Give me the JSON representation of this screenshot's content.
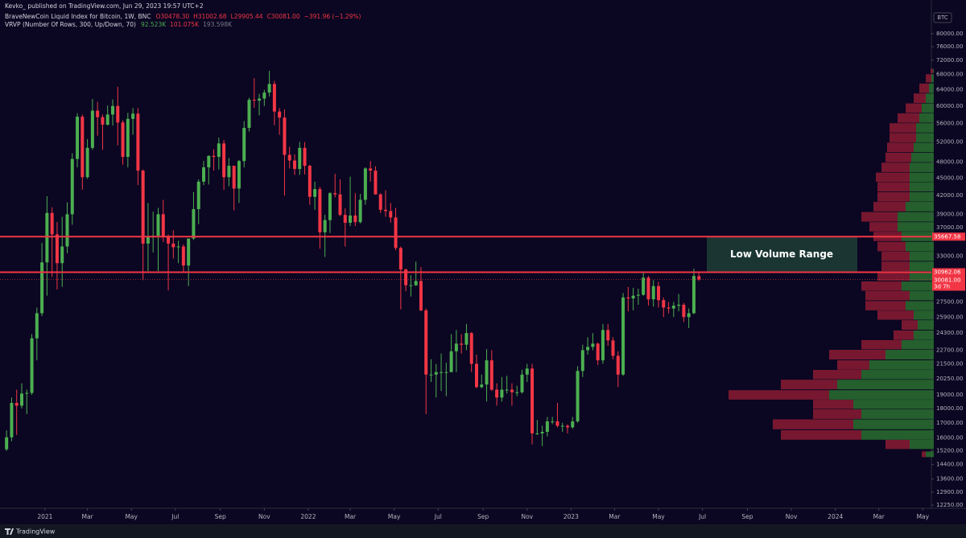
{
  "header": {
    "publisher": "Kevko_ published on TradingView.com, Jun 29, 2023 19:57 UTC+2",
    "symbol": "BraveNewCoin Liquid Index for Bitcoin, 1W, BNC",
    "ohlc": [
      "O30478.30",
      "H31002.68",
      "L29905.44",
      "C30081.00",
      "−391.96 (−1.29%)"
    ],
    "indicator": "VRVP (Number Of Rows, 300, Up/Down, 70)",
    "indicator_values": [
      "92.523K",
      "101.075K",
      "193.598K"
    ]
  },
  "symbol_badge": "BTC",
  "footer": "TradingView",
  "chart_data": {
    "type": "candlestick",
    "log_scale": true,
    "colors": {
      "up": "#4caf50",
      "down": "#f23645",
      "level": "#f23645"
    },
    "xlim": [
      -1.3,
      183
    ],
    "ylim": [
      12100,
      91500
    ],
    "xticks": [
      {
        "value": 7.6,
        "label": "2021"
      },
      {
        "value": 16,
        "label": "Mar"
      },
      {
        "value": 24.7,
        "label": "May"
      },
      {
        "value": 33.4,
        "label": "Jul"
      },
      {
        "value": 42.3,
        "label": "Sep"
      },
      {
        "value": 51,
        "label": "Nov"
      },
      {
        "value": 59.7,
        "label": "2022"
      },
      {
        "value": 68,
        "label": "Mar"
      },
      {
        "value": 76.7,
        "label": "May"
      },
      {
        "value": 85.4,
        "label": "Jul"
      },
      {
        "value": 94.3,
        "label": "Sep"
      },
      {
        "value": 103,
        "label": "Nov"
      },
      {
        "value": 111.7,
        "label": "2023"
      },
      {
        "value": 120.3,
        "label": "Mar"
      },
      {
        "value": 129,
        "label": "May"
      },
      {
        "value": 137.7,
        "label": "Jul"
      },
      {
        "value": 146.6,
        "label": "Sep"
      },
      {
        "value": 155.3,
        "label": "Nov"
      },
      {
        "value": 164,
        "label": "2024"
      },
      {
        "value": 172.6,
        "label": "Mar"
      },
      {
        "value": 181.3,
        "label": "May"
      }
    ],
    "yticks": [
      {
        "value": 80000,
        "label": "80000.00"
      },
      {
        "value": 76000,
        "label": "76000.00"
      },
      {
        "value": 72000,
        "label": "72000.00"
      },
      {
        "value": 68000,
        "label": "68000.00"
      },
      {
        "value": 64000,
        "label": "64000.00"
      },
      {
        "value": 60000,
        "label": "60000.00"
      },
      {
        "value": 56000,
        "label": "56000.00"
      },
      {
        "value": 52000,
        "label": "52000.00"
      },
      {
        "value": 48000,
        "label": "48000.00"
      },
      {
        "value": 45000,
        "label": "45000.00"
      },
      {
        "value": 42000,
        "label": "42000.00"
      },
      {
        "value": 39000,
        "label": "39000.00"
      },
      {
        "value": 37000,
        "label": "37000.00"
      },
      {
        "value": 33000,
        "label": "33000.00"
      },
      {
        "value": 27500,
        "label": "27500.00"
      },
      {
        "value": 25900,
        "label": "25900.00"
      },
      {
        "value": 24300,
        "label": "24300.00"
      },
      {
        "value": 22700,
        "label": "22700.00"
      },
      {
        "value": 21500,
        "label": "21500.00"
      },
      {
        "value": 20250,
        "label": "20250.00"
      },
      {
        "value": 19000,
        "label": "19000.00"
      },
      {
        "value": 18000,
        "label": "18000.00"
      },
      {
        "value": 17000,
        "label": "17000.00"
      },
      {
        "value": 16000,
        "label": "16000.00"
      },
      {
        "value": 15200,
        "label": "15200.00"
      },
      {
        "value": 14400,
        "label": "14400.00"
      },
      {
        "value": 13600,
        "label": "13600.00"
      },
      {
        "value": 12900,
        "label": "12900.00"
      },
      {
        "value": 12250,
        "label": "12250.00"
      }
    ],
    "levels": [
      35667.58,
      30962.06
    ],
    "last_price": {
      "value": 30081.0,
      "label": "30081.00"
    },
    "countdown": "3d 7h",
    "annotation": "Low Volume Range",
    "candles": [
      [
        15300,
        16500,
        15200,
        16050
      ],
      [
        16050,
        18800,
        15800,
        18400
      ],
      [
        18400,
        19400,
        16200,
        18200
      ],
      [
        18200,
        19900,
        18000,
        19100
      ],
      [
        19100,
        19400,
        17600,
        19150
      ],
      [
        19150,
        24200,
        19000,
        23800
      ],
      [
        23800,
        26900,
        21800,
        26300
      ],
      [
        26300,
        34800,
        26000,
        32200
      ],
      [
        32200,
        41900,
        28200,
        39200
      ],
      [
        39200,
        40100,
        30400,
        36000
      ],
      [
        36000,
        37800,
        28900,
        32100
      ],
      [
        32100,
        38600,
        29200,
        34300
      ],
      [
        34300,
        40900,
        33400,
        39000
      ],
      [
        39000,
        49700,
        37400,
        48600
      ],
      [
        48600,
        58300,
        47000,
        57500
      ],
      [
        57500,
        58000,
        43000,
        45200
      ],
      [
        45200,
        52600,
        44900,
        50800
      ],
      [
        50800,
        61700,
        50400,
        58900
      ],
      [
        58900,
        61000,
        53300,
        57400
      ],
      [
        57400,
        58000,
        50400,
        55700
      ],
      [
        55700,
        60100,
        55500,
        58000
      ],
      [
        58000,
        61600,
        55500,
        60000
      ],
      [
        60000,
        64800,
        51300,
        56200
      ],
      [
        56200,
        56700,
        47500,
        49000
      ],
      [
        49000,
        58400,
        47000,
        57000
      ],
      [
        57000,
        59500,
        53500,
        58200
      ],
      [
        58200,
        59500,
        43800,
        46400
      ],
      [
        46400,
        46600,
        30000,
        34700
      ],
      [
        34700,
        40800,
        31100,
        35700
      ],
      [
        35700,
        39400,
        33500,
        35800
      ],
      [
        35800,
        40000,
        31100,
        39000
      ],
      [
        39000,
        41300,
        34900,
        35600
      ],
      [
        35600,
        36000,
        28800,
        34700
      ],
      [
        34700,
        36600,
        32700,
        34200
      ],
      [
        34200,
        35100,
        32100,
        34300
      ],
      [
        34300,
        34600,
        31000,
        31800
      ],
      [
        31800,
        35400,
        29300,
        35400
      ],
      [
        35400,
        42600,
        35200,
        39800
      ],
      [
        39800,
        44800,
        37500,
        44400
      ],
      [
        44400,
        48200,
        43800,
        47000
      ],
      [
        47000,
        49300,
        43900,
        49200
      ],
      [
        49200,
        50500,
        46400,
        49000
      ],
      [
        49000,
        52900,
        46600,
        51700
      ],
      [
        51700,
        52400,
        43000,
        45200
      ],
      [
        45200,
        48800,
        43600,
        47300
      ],
      [
        47300,
        47300,
        39600,
        43200
      ],
      [
        43200,
        48400,
        40800,
        48200
      ],
      [
        48200,
        56500,
        47000,
        55000
      ],
      [
        55000,
        62000,
        54200,
        61500
      ],
      [
        61500,
        67000,
        59600,
        61300
      ],
      [
        61300,
        63000,
        57800,
        61800
      ],
      [
        61800,
        64000,
        60000,
        63300
      ],
      [
        63300,
        69000,
        62300,
        65500
      ],
      [
        65500,
        66300,
        55600,
        58700
      ],
      [
        58700,
        59500,
        53500,
        57300
      ],
      [
        57300,
        59200,
        42000,
        49400
      ],
      [
        49400,
        51000,
        46800,
        48300
      ],
      [
        48300,
        49500,
        45600,
        46700
      ],
      [
        46700,
        52000,
        45600,
        50800
      ],
      [
        50800,
        52000,
        45700,
        47300
      ],
      [
        47300,
        47500,
        40500,
        41800
      ],
      [
        41800,
        44400,
        39700,
        43100
      ],
      [
        43100,
        43500,
        34000,
        36300
      ],
      [
        36300,
        38900,
        32900,
        38100
      ],
      [
        38100,
        42600,
        36200,
        42400
      ],
      [
        42400,
        45800,
        41700,
        42200
      ],
      [
        42200,
        44800,
        38700,
        38900
      ],
      [
        38900,
        39900,
        34300,
        37700
      ],
      [
        37700,
        45300,
        37200,
        38800
      ],
      [
        38800,
        42400,
        37200,
        37800
      ],
      [
        37800,
        42300,
        37600,
        41300
      ],
      [
        41300,
        47000,
        40500,
        46800
      ],
      [
        46800,
        48200,
        44400,
        46400
      ],
      [
        46400,
        47200,
        42200,
        42200
      ],
      [
        42200,
        42400,
        39200,
        39700
      ],
      [
        39700,
        42900,
        38600,
        39500
      ],
      [
        39500,
        40800,
        37700,
        38500
      ],
      [
        38500,
        40000,
        33800,
        34100
      ],
      [
        34100,
        34300,
        26700,
        31300
      ],
      [
        31300,
        31400,
        28700,
        29400
      ],
      [
        29400,
        30600,
        28100,
        29400
      ],
      [
        29400,
        32300,
        29300,
        29900
      ],
      [
        29900,
        31600,
        26500,
        26600
      ],
      [
        26600,
        26800,
        17600,
        20600
      ],
      [
        20600,
        21900,
        20000,
        20600
      ],
      [
        20600,
        21500,
        18800,
        20800
      ],
      [
        20800,
        22400,
        19300,
        20800
      ],
      [
        20800,
        21600,
        18900,
        20800
      ],
      [
        20800,
        24200,
        20800,
        22600
      ],
      [
        22600,
        24600,
        20800,
        23300
      ],
      [
        23300,
        24200,
        22400,
        23200
      ],
      [
        23200,
        25200,
        22700,
        24300
      ],
      [
        24300,
        24400,
        20800,
        21500
      ],
      [
        21500,
        22300,
        19500,
        19600
      ],
      [
        19600,
        20600,
        19500,
        19800
      ],
      [
        19800,
        22800,
        18500,
        21800
      ],
      [
        21800,
        22700,
        19300,
        19400
      ],
      [
        19400,
        19900,
        18200,
        18800
      ],
      [
        18800,
        20400,
        18500,
        19400
      ],
      [
        19400,
        20500,
        19100,
        19400
      ],
      [
        19400,
        19900,
        18200,
        19200
      ],
      [
        19200,
        19700,
        18900,
        19200
      ],
      [
        19200,
        21000,
        19100,
        20600
      ],
      [
        20600,
        21500,
        20000,
        21100
      ],
      [
        21100,
        21500,
        15600,
        16300
      ],
      [
        16300,
        17200,
        16200,
        16300
      ],
      [
        16300,
        16800,
        15500,
        16400
      ],
      [
        16400,
        17400,
        16100,
        17100
      ],
      [
        17100,
        17400,
        16900,
        17100
      ],
      [
        17100,
        18400,
        16700,
        16800
      ],
      [
        16800,
        17000,
        16400,
        16800
      ],
      [
        16800,
        16900,
        16300,
        16700
      ],
      [
        16700,
        17400,
        16600,
        17100
      ],
      [
        17100,
        21300,
        17000,
        20900
      ],
      [
        20900,
        23200,
        20400,
        22700
      ],
      [
        22700,
        23900,
        22300,
        23000
      ],
      [
        23000,
        24300,
        22700,
        23300
      ],
      [
        23300,
        23400,
        21400,
        21800
      ],
      [
        21800,
        25200,
        21500,
        24600
      ],
      [
        24600,
        25200,
        23100,
        23600
      ],
      [
        23600,
        23900,
        21900,
        22200
      ],
      [
        22200,
        22600,
        19600,
        20600
      ],
      [
        20600,
        28500,
        20500,
        28000
      ],
      [
        28000,
        29200,
        26500,
        27900
      ],
      [
        27900,
        29100,
        26600,
        28200
      ],
      [
        28200,
        29000,
        27200,
        28300
      ],
      [
        28300,
        31000,
        28200,
        30300
      ],
      [
        30300,
        30500,
        27100,
        27800
      ],
      [
        27800,
        30000,
        27000,
        29300
      ],
      [
        29300,
        29800,
        26900,
        27700
      ],
      [
        27700,
        28000,
        25900,
        26900
      ],
      [
        26900,
        27500,
        26300,
        26800
      ],
      [
        26800,
        27500,
        25900,
        27100
      ],
      [
        27100,
        28400,
        26500,
        27200
      ],
      [
        27200,
        27400,
        25400,
        25900
      ],
      [
        25900,
        26800,
        24800,
        26300
      ],
      [
        26300,
        31400,
        26200,
        30500
      ],
      [
        30478.3,
        31002.68,
        29905.44,
        30081.0
      ]
    ],
    "volume_profile": {
      "colors": {
        "up": "#2e7d32",
        "down": "#9c1f35"
      },
      "prices": [
        15000,
        15600,
        16200,
        16900,
        17600,
        18300,
        19000,
        19800,
        20600,
        21400,
        22300,
        23200,
        24100,
        25100,
        26100,
        27100,
        28200,
        29300,
        30500,
        31700,
        33000,
        34300,
        35700,
        37100,
        38600,
        40200,
        41800,
        43500,
        45200,
        47000,
        48900,
        50900,
        52900,
        55000,
        57200,
        59500,
        61900,
        64400,
        67000,
        69000
      ],
      "up": [
        10,
        30,
        90,
        100,
        90,
        100,
        130,
        120,
        90,
        80,
        60,
        40,
        25,
        20,
        25,
        35,
        30,
        40,
        30,
        30,
        30,
        35,
        40,
        45,
        45,
        35,
        30,
        30,
        30,
        30,
        28,
        25,
        22,
        22,
        18,
        15,
        10,
        6,
        3,
        1
      ],
      "down": [
        5,
        30,
        100,
        100,
        60,
        50,
        125,
        70,
        60,
        40,
        70,
        50,
        25,
        20,
        45,
        50,
        55,
        50,
        40,
        35,
        35,
        35,
        35,
        35,
        45,
        40,
        40,
        40,
        42,
        35,
        32,
        33,
        33,
        33,
        27,
        20,
        15,
        12,
        7,
        3
      ]
    }
  }
}
